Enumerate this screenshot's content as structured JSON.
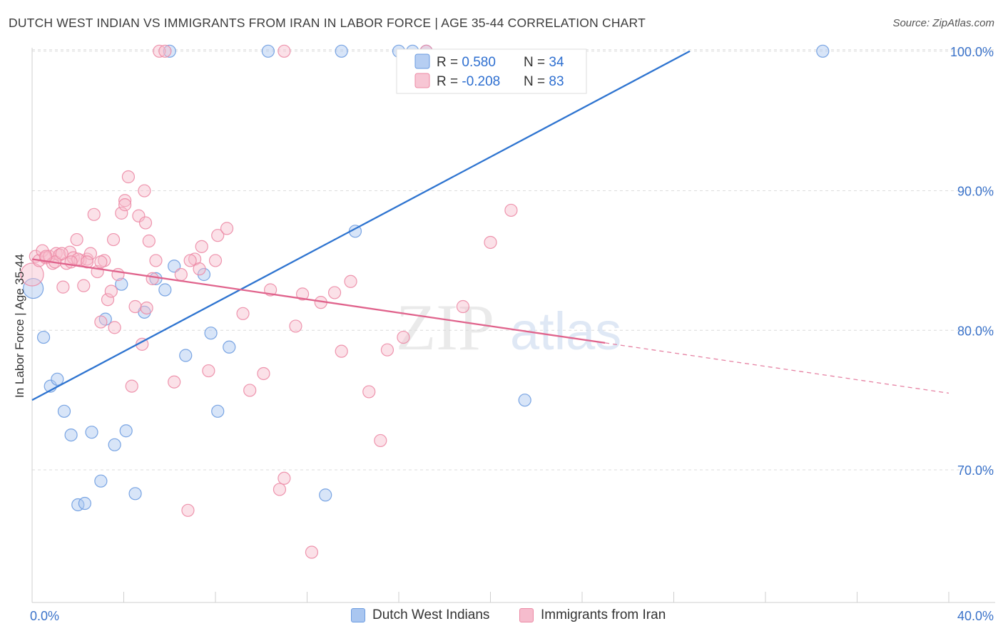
{
  "title": "DUTCH WEST INDIAN VS IMMIGRANTS FROM IRAN IN LABOR FORCE | AGE 35-44 CORRELATION CHART",
  "source": "Source: ZipAtlas.com",
  "watermark": {
    "part1": "ZIP",
    "part2": "atlas"
  },
  "chart_data": {
    "type": "scatter",
    "xlabel": "",
    "ylabel": "In Labor Force | Age 35-44",
    "xlim": [
      0,
      40
    ],
    "ylim": [
      60.5,
      100.5
    ],
    "x_tick_labels": [
      {
        "value": 0,
        "label": "0.0%"
      },
      {
        "value": 40,
        "label": "40.0%"
      }
    ],
    "x_minor_ticks": [
      0,
      4,
      8,
      12,
      16,
      20,
      24,
      28,
      32,
      36,
      40
    ],
    "y_ticks": [
      {
        "value": 70,
        "label": "70.0%"
      },
      {
        "value": 80,
        "label": "80.0%"
      },
      {
        "value": 90,
        "label": "90.0%"
      },
      {
        "value": 100,
        "label": "100.0%"
      }
    ],
    "grid": true,
    "legend_position": "top-center",
    "stats": [
      {
        "r_label": "R = ",
        "r_value": "0.580",
        "n_label": "N = ",
        "n_value": "34"
      },
      {
        "r_label": "R = ",
        "r_value": "-0.208",
        "n_label": "N = ",
        "n_value": "83"
      }
    ],
    "series": [
      {
        "name": "Dutch West Indians",
        "color": "#6b9be0",
        "fill": "#a9c6f0",
        "line_color": "#2e74d0",
        "trend": {
          "x0": 0,
          "y0": 75.0,
          "x1": 28.7,
          "y1": 100.0,
          "dashed_to": null
        },
        "points": [
          [
            0.05,
            83.0
          ],
          [
            0.5,
            79.5
          ],
          [
            0.8,
            76.0
          ],
          [
            1.1,
            76.5
          ],
          [
            1.4,
            74.2
          ],
          [
            1.7,
            72.5
          ],
          [
            2.0,
            67.5
          ],
          [
            2.3,
            67.6
          ],
          [
            2.6,
            72.7
          ],
          [
            3.0,
            69.2
          ],
          [
            3.2,
            80.8
          ],
          [
            3.6,
            71.8
          ],
          [
            3.9,
            83.3
          ],
          [
            4.1,
            72.8
          ],
          [
            4.5,
            68.3
          ],
          [
            4.9,
            81.3
          ],
          [
            5.4,
            83.7
          ],
          [
            5.8,
            82.9
          ],
          [
            6.2,
            84.6
          ],
          [
            6.7,
            78.2
          ],
          [
            7.5,
            84.0
          ],
          [
            7.8,
            79.8
          ],
          [
            8.1,
            74.2
          ],
          [
            8.6,
            78.8
          ],
          [
            6.0,
            100.0
          ],
          [
            10.3,
            100.0
          ],
          [
            13.5,
            100.0
          ],
          [
            14.1,
            87.1
          ],
          [
            16.0,
            100.0
          ],
          [
            16.6,
            100.0
          ],
          [
            17.2,
            100.0
          ],
          [
            12.8,
            68.2
          ],
          [
            21.5,
            75.0
          ],
          [
            34.5,
            100.0
          ]
        ]
      },
      {
        "name": "Immigrants from Iran",
        "color": "#ec8aa5",
        "fill": "#f6bccd",
        "line_color": "#e0638c",
        "trend": {
          "x0": 0,
          "y0": 85.1,
          "x1": 25.0,
          "y1": 79.1,
          "dashed_to": {
            "x": 40.0,
            "y": 75.5
          }
        },
        "points": [
          [
            0.0,
            84.0
          ],
          [
            0.15,
            85.3
          ],
          [
            0.3,
            85.0
          ],
          [
            0.45,
            85.7
          ],
          [
            0.6,
            85.2
          ],
          [
            0.75,
            85.3
          ],
          [
            0.9,
            84.8
          ],
          [
            1.05,
            85.5
          ],
          [
            1.2,
            85.4
          ],
          [
            1.35,
            83.1
          ],
          [
            1.5,
            84.8
          ],
          [
            1.65,
            85.6
          ],
          [
            1.8,
            85.2
          ],
          [
            1.95,
            86.5
          ],
          [
            2.1,
            85.0
          ],
          [
            2.25,
            83.2
          ],
          [
            2.4,
            85.1
          ],
          [
            2.55,
            85.5
          ],
          [
            2.7,
            88.3
          ],
          [
            2.85,
            84.2
          ],
          [
            3.0,
            80.6
          ],
          [
            3.15,
            85.0
          ],
          [
            3.3,
            82.2
          ],
          [
            3.45,
            82.8
          ],
          [
            3.55,
            86.5
          ],
          [
            3.6,
            80.2
          ],
          [
            3.75,
            84.0
          ],
          [
            3.9,
            88.4
          ],
          [
            4.05,
            89.3
          ],
          [
            4.2,
            91.0
          ],
          [
            4.35,
            76.0
          ],
          [
            4.5,
            81.7
          ],
          [
            4.65,
            88.2
          ],
          [
            4.8,
            79.0
          ],
          [
            4.95,
            87.7
          ],
          [
            5.1,
            86.4
          ],
          [
            5.25,
            83.7
          ],
          [
            5.4,
            85.0
          ],
          [
            5.55,
            100.0
          ],
          [
            6.2,
            76.3
          ],
          [
            6.5,
            84.0
          ],
          [
            6.8,
            67.1
          ],
          [
            7.1,
            85.1
          ],
          [
            7.4,
            86.0
          ],
          [
            7.7,
            77.1
          ],
          [
            8.1,
            86.8
          ],
          [
            8.5,
            87.3
          ],
          [
            9.2,
            81.2
          ],
          [
            9.5,
            75.7
          ],
          [
            10.1,
            76.9
          ],
          [
            10.4,
            82.9
          ],
          [
            10.8,
            68.6
          ],
          [
            11.0,
            69.4
          ],
          [
            11.5,
            80.3
          ],
          [
            11.8,
            82.6
          ],
          [
            12.2,
            64.1
          ],
          [
            12.6,
            82.0
          ],
          [
            13.2,
            82.7
          ],
          [
            13.5,
            78.5
          ],
          [
            13.9,
            83.5
          ],
          [
            14.7,
            75.6
          ],
          [
            15.2,
            72.1
          ],
          [
            15.5,
            78.6
          ],
          [
            17.2,
            100.0
          ],
          [
            18.8,
            81.7
          ],
          [
            20.0,
            86.3
          ],
          [
            20.9,
            88.6
          ],
          [
            16.2,
            79.5
          ],
          [
            2.0,
            85.1
          ],
          [
            2.4,
            84.9
          ],
          [
            1.0,
            84.9
          ],
          [
            3.0,
            84.9
          ],
          [
            5.8,
            100.0
          ],
          [
            11.0,
            100.0
          ],
          [
            4.05,
            89.0
          ],
          [
            4.9,
            90.0
          ],
          [
            7.3,
            84.4
          ],
          [
            6.9,
            85.0
          ],
          [
            8.0,
            85.0
          ],
          [
            5.0,
            81.6
          ],
          [
            0.6,
            85.3
          ],
          [
            1.3,
            85.5
          ],
          [
            1.7,
            84.9
          ]
        ]
      }
    ]
  }
}
